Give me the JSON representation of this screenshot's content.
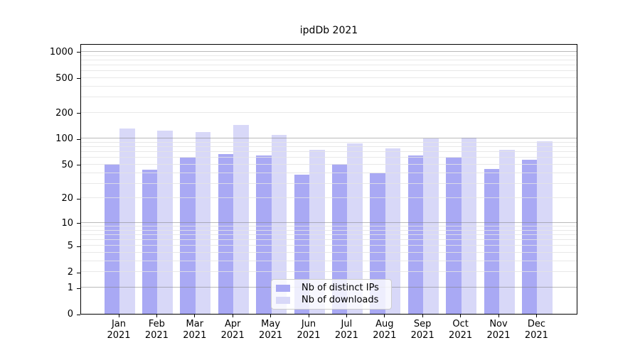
{
  "title": "ipdDb 2021",
  "chart_data": {
    "type": "bar",
    "title": "ipdDb 2021",
    "categories": [
      "Jan\n2021",
      "Feb\n2021",
      "Mar\n2021",
      "Apr\n2021",
      "May\n2021",
      "Jun\n2021",
      "Jul\n2021",
      "Aug\n2021",
      "Sep\n2021",
      "Oct\n2021",
      "Nov\n2021",
      "Dec\n2021"
    ],
    "series": [
      {
        "name": "Nb of distinct IPs",
        "color": "#a9a9f4",
        "values": [
          51,
          44,
          61,
          66,
          64,
          38,
          51,
          40,
          64,
          61,
          45,
          57
        ]
      },
      {
        "name": "Nb of downloads",
        "color": "#d8d8f8",
        "values": [
          131,
          125,
          120,
          145,
          110,
          74,
          88,
          77,
          101,
          103,
          75,
          94
        ]
      }
    ],
    "xlabel": "",
    "ylabel": "",
    "yscale": "log10(value+1)",
    "yticks": [
      0,
      1,
      2,
      5,
      10,
      20,
      50,
      100,
      200,
      500,
      1000
    ],
    "ylim": [
      0,
      1250
    ],
    "grid": "both",
    "legend_position": "lower center"
  },
  "colors": {
    "background": "#ffffff",
    "axis": "#000000",
    "major_grid": "#b4b4b4",
    "minor_grid": "#e8e8e8",
    "legend_border": "#cccccc"
  }
}
